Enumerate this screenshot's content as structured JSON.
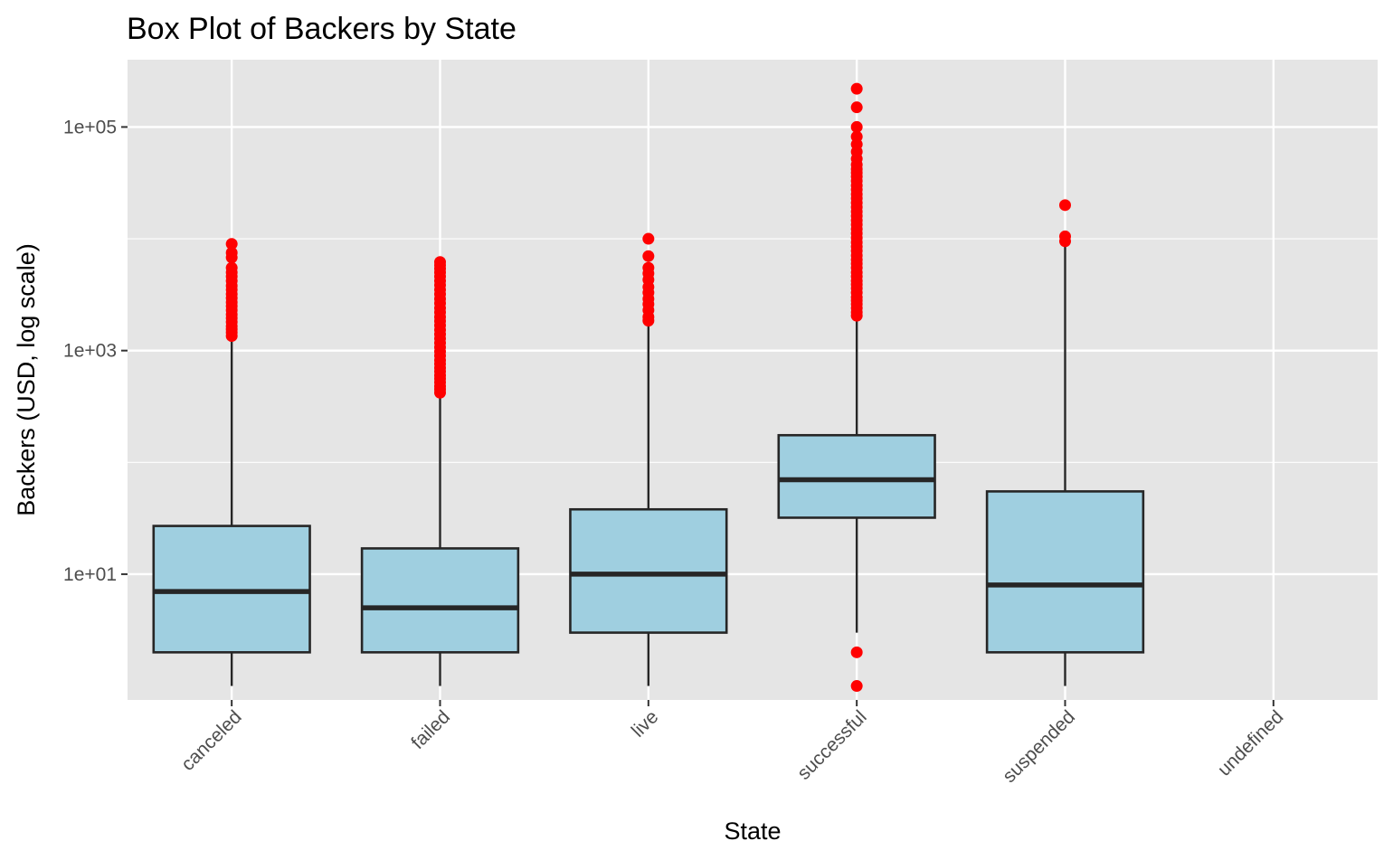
{
  "chart_data": {
    "type": "box",
    "title": "Box Plot of Backers by State",
    "xlabel": "State",
    "ylabel": "Backers (USD, log scale)",
    "y_scale": "log10",
    "ylim": [
      0.75,
      400000
    ],
    "y_ticks": [
      {
        "value": 10,
        "label": "1e+01"
      },
      {
        "value": 1000,
        "label": "1e+03"
      },
      {
        "value": 100000,
        "label": "1e+05"
      }
    ],
    "grid": true,
    "colors": {
      "panel": "#e5e5e5",
      "grid": "#ffffff",
      "box_fill": "#9fcfe0",
      "box_stroke": "#262626",
      "outlier": "#ff0000"
    },
    "categories": [
      "canceled",
      "failed",
      "live",
      "successful",
      "suspended",
      "undefined"
    ],
    "boxes": [
      {
        "category": "canceled",
        "whisker_low": 1,
        "q1": 2,
        "median": 7,
        "q3": 27,
        "whisker_high": 1250,
        "outliers": [
          1350,
          1450,
          1550,
          1650,
          1800,
          1950,
          2100,
          2300,
          2500,
          2700,
          2950,
          3200,
          3500,
          3800,
          4200,
          4600,
          5000,
          5500,
          6800,
          7500,
          9000
        ]
      },
      {
        "category": "failed",
        "whisker_low": 1,
        "q1": 2,
        "median": 5,
        "q3": 17,
        "whisker_high": 400,
        "outliers": [
          420,
          450,
          480,
          520,
          560,
          600,
          650,
          700,
          760,
          820,
          900,
          980,
          1070,
          1170,
          1280,
          1400,
          1530,
          1680,
          1840,
          2000,
          2200,
          2400,
          2650,
          2900,
          3200,
          3500,
          3850,
          4200,
          4600,
          5000,
          5400,
          5800,
          6200
        ]
      },
      {
        "category": "live",
        "whisker_low": 1,
        "q1": 3,
        "median": 10,
        "q3": 38,
        "whisker_high": 1700,
        "outliers": [
          1850,
          2000,
          2300,
          2600,
          2900,
          3300,
          3700,
          4300,
          4900,
          5500,
          7000,
          10000
        ]
      },
      {
        "category": "successful",
        "whisker_low": 3,
        "q1": 32,
        "median": 70,
        "q3": 175,
        "whisker_high": 1900,
        "outliers": [
          1,
          2,
          2050,
          2200,
          2400,
          2600,
          2800,
          3000,
          3300,
          3600,
          3900,
          4200,
          4600,
          5000,
          5500,
          6000,
          6500,
          7100,
          7800,
          8500,
          9300,
          10200,
          11200,
          12200,
          13400,
          14600,
          16000,
          17500,
          19200,
          21000,
          23000,
          25000,
          27500,
          30000,
          33000,
          36000,
          39000,
          42000,
          46000,
          52000,
          60000,
          70000,
          82000,
          100000,
          150000,
          220000
        ]
      },
      {
        "category": "suspended",
        "whisker_low": 1,
        "q1": 2,
        "median": 8,
        "q3": 55,
        "whisker_high": 8500,
        "outliers": [
          9500,
          10500,
          20000
        ]
      },
      {
        "category": "undefined"
      }
    ]
  }
}
